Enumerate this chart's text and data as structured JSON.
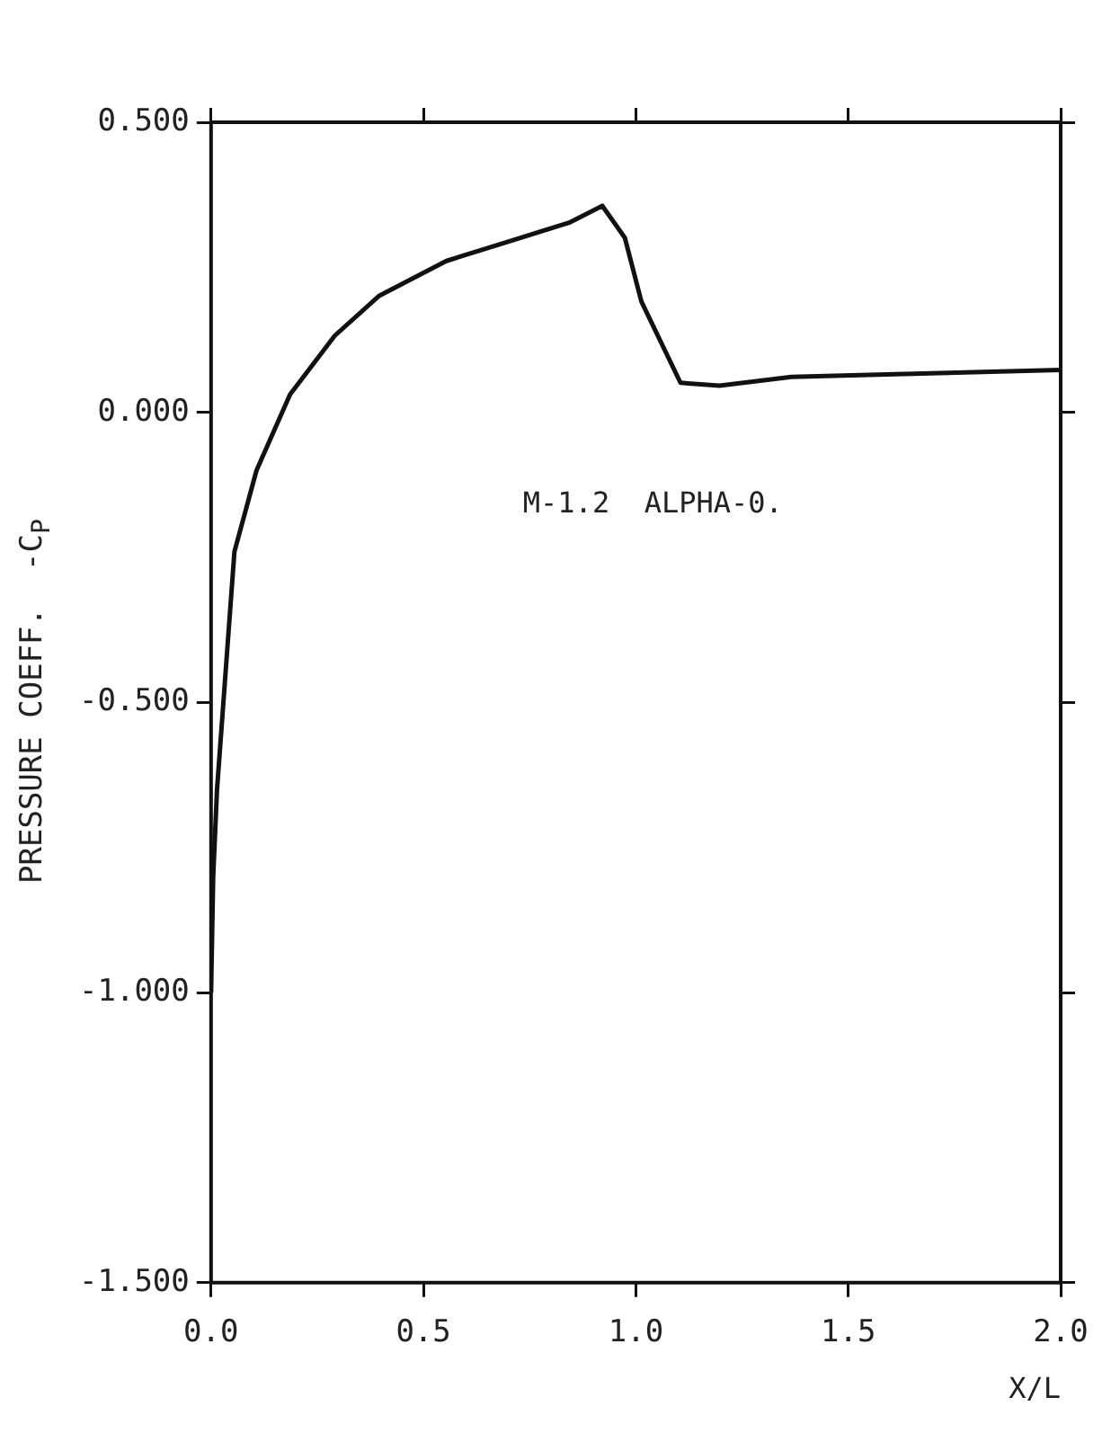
{
  "chart_data": {
    "type": "line",
    "xlabel": "X/L",
    "ylabel": "PRESSURE COEFF.  -C$_{P}$",
    "annotations": [
      "M-1.2  ALPHA-0."
    ],
    "x": [
      0,
      0.005,
      0.014,
      0.029,
      0.055,
      0.107,
      0.186,
      0.291,
      0.396,
      0.554,
      0.711,
      0.843,
      0.921,
      0.974,
      1.013,
      1.105,
      1.197,
      1.366,
      1.63,
      2.0
    ],
    "series": [
      {
        "color": "#111111",
        "values": [
          -1.0,
          -0.8,
          -0.65,
          -0.5,
          -0.24,
          -0.1,
          0.031,
          0.132,
          0.201,
          0.261,
          0.297,
          0.327,
          0.356,
          0.301,
          0.191,
          0.051,
          0.046,
          0.061,
          0.066,
          0.073
        ]
      }
    ],
    "xlim": [
      0,
      2
    ],
    "xticks": [
      {
        "value": 0,
        "label": "0.0"
      },
      {
        "value": 0.5,
        "label": "0.5"
      },
      {
        "value": 1,
        "label": "1.0"
      },
      {
        "value": 1.5,
        "label": "1.5"
      },
      {
        "value": 2,
        "label": "2.0"
      }
    ],
    "ylim": [
      -1.5,
      0.5
    ],
    "yticks": [
      {
        "value": -1.5,
        "label": "-1.500"
      },
      {
        "value": -1,
        "label": "-1.000"
      },
      {
        "value": -0.5,
        "label": "-0.500"
      },
      {
        "value": 0,
        "label": "0.000"
      },
      {
        "value": 0.5,
        "label": "0.500"
      }
    ],
    "grid": false,
    "legend": false,
    "marker": "none",
    "line_style": "solid"
  }
}
